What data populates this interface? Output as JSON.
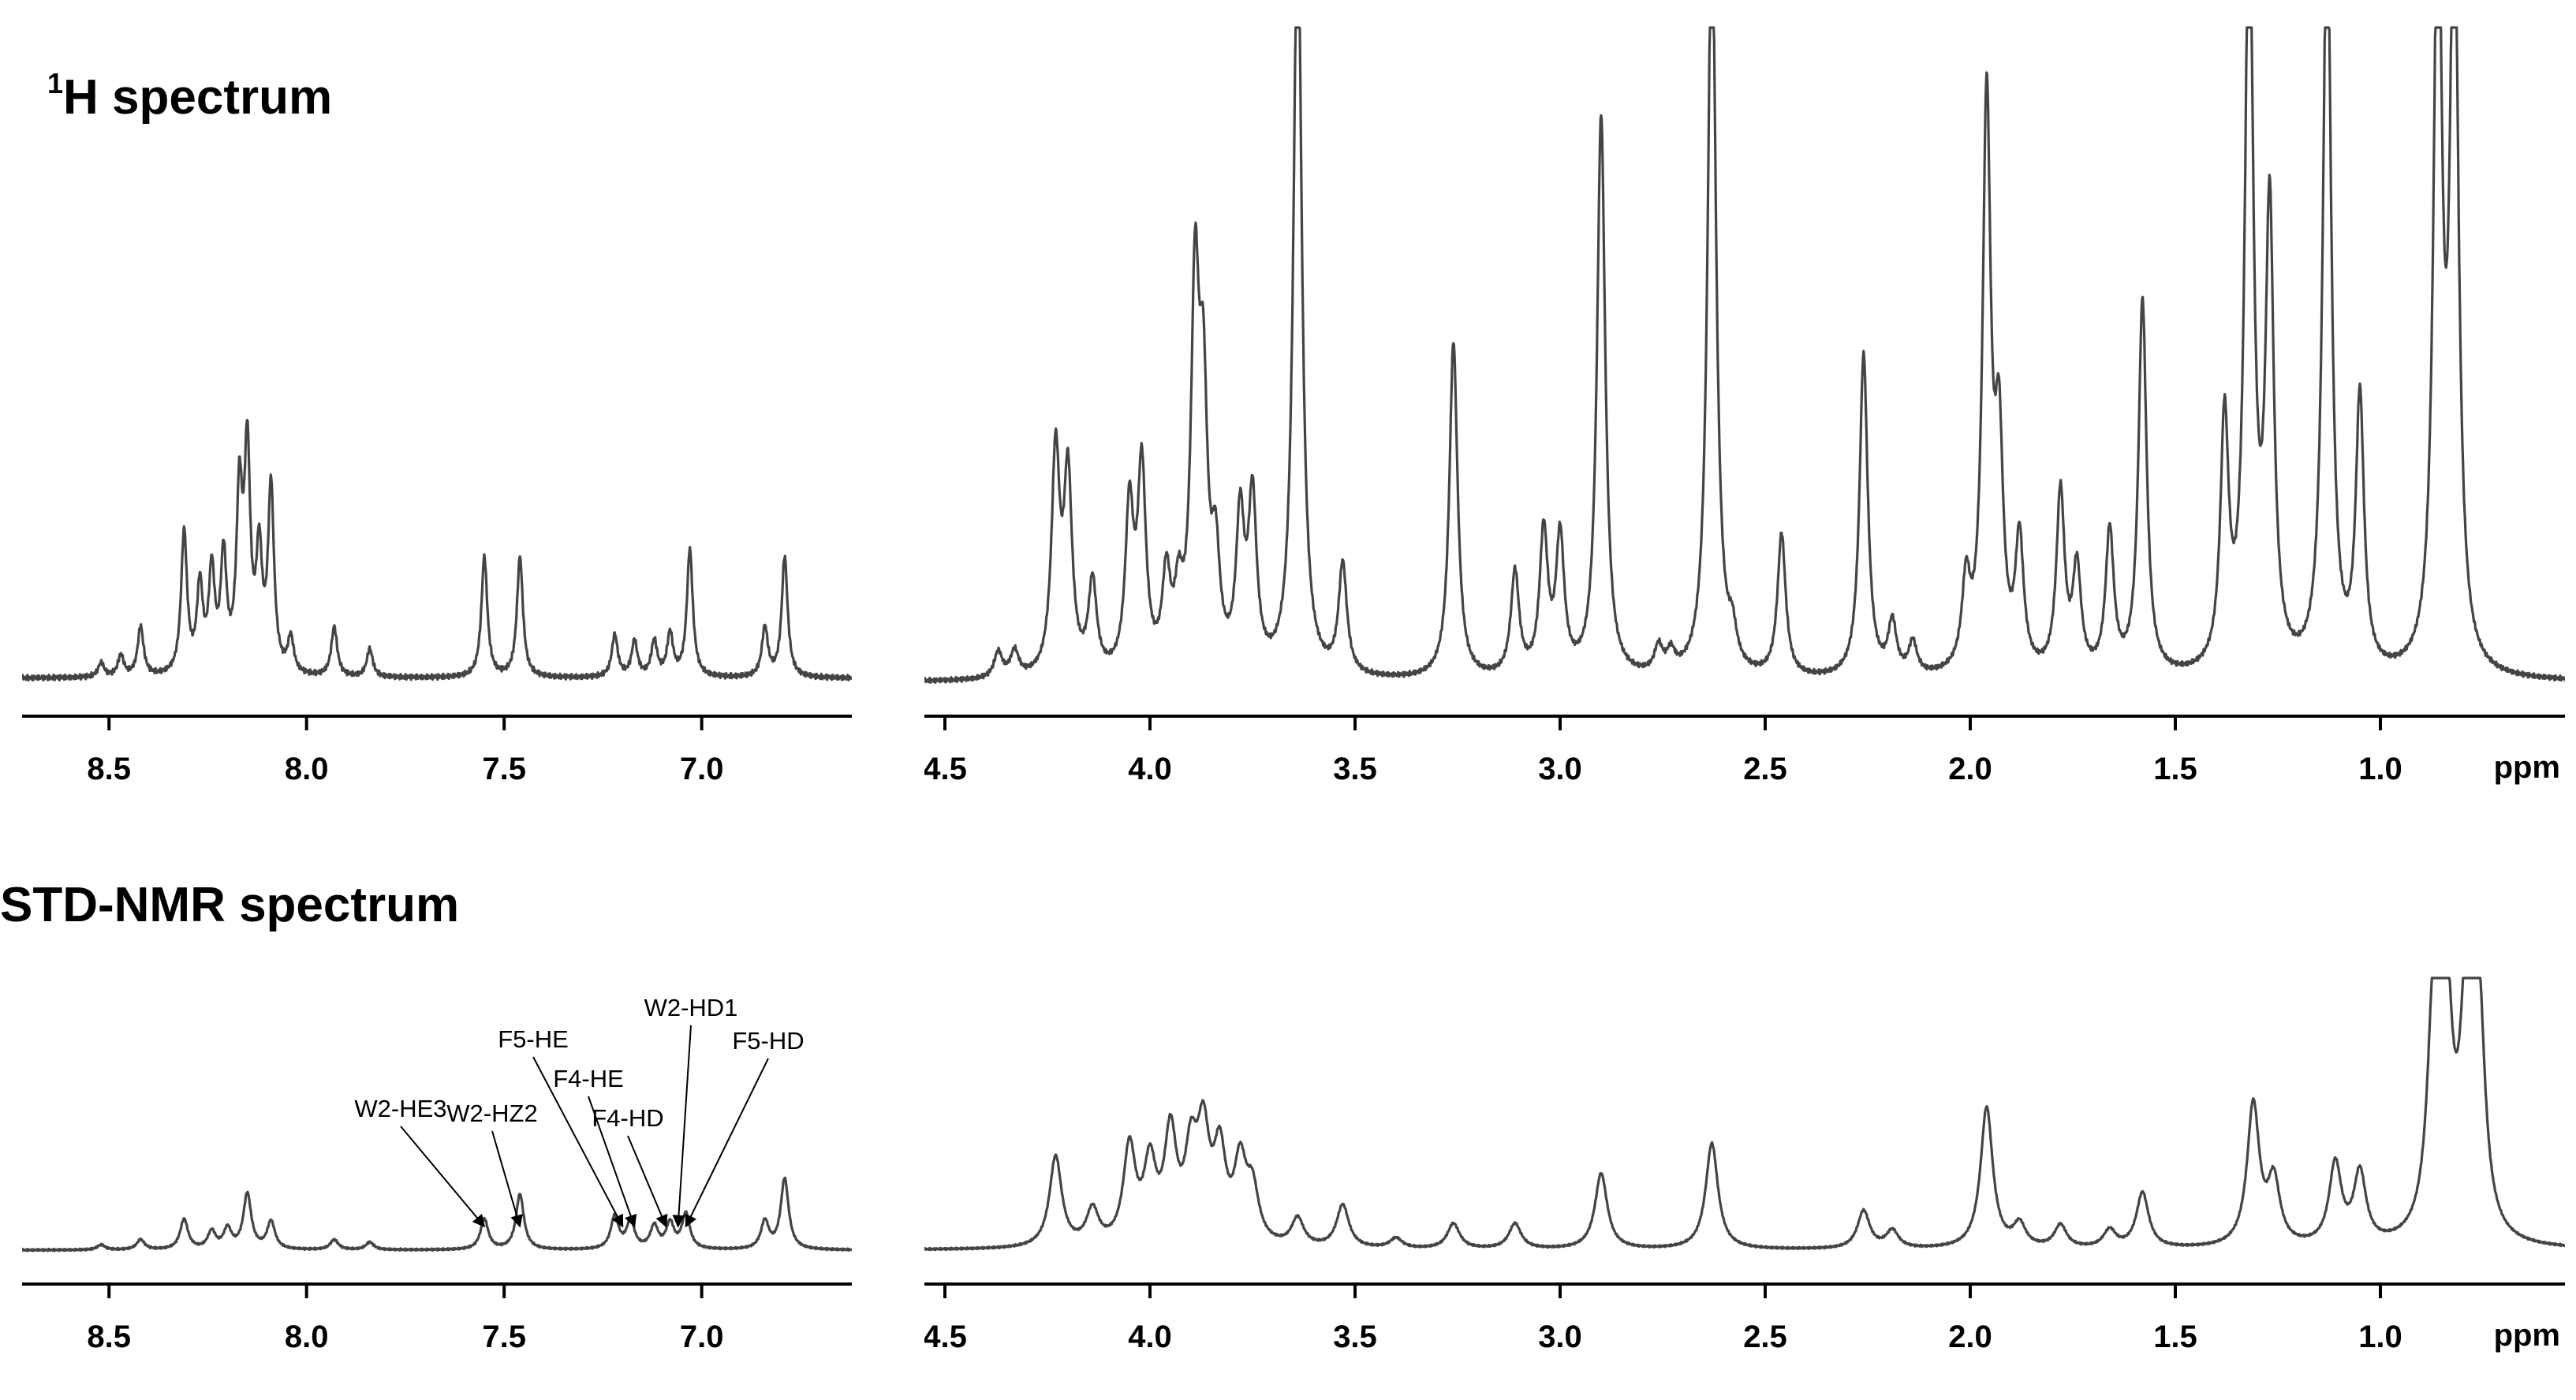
{
  "titles": {
    "h1": {
      "sup": "1",
      "text": "H spectrum"
    },
    "std": {
      "text": "STD-NMR spectrum"
    }
  },
  "axis_unit": "ppm",
  "colors": {
    "trace": "#444444",
    "axis": "#000000"
  },
  "chart_data": [
    {
      "type": "line",
      "panel": "1H spectrum, aromatic region",
      "xlabel": "",
      "xlim": [
        8.72,
        6.62
      ],
      "x_reversed": true,
      "x_ticks": [
        "8.5",
        "8.0",
        "7.5",
        "7.0"
      ],
      "peaks": [
        {
          "x": 8.52,
          "y": 0.02
        },
        {
          "x": 8.47,
          "y": 0.03
        },
        {
          "x": 8.42,
          "y": 0.07
        },
        {
          "x": 8.31,
          "y": 0.2
        },
        {
          "x": 8.27,
          "y": 0.12
        },
        {
          "x": 8.24,
          "y": 0.14
        },
        {
          "x": 8.21,
          "y": 0.16
        },
        {
          "x": 8.17,
          "y": 0.24
        },
        {
          "x": 8.15,
          "y": 0.3
        },
        {
          "x": 8.12,
          "y": 0.16
        },
        {
          "x": 8.09,
          "y": 0.26
        },
        {
          "x": 8.04,
          "y": 0.05
        },
        {
          "x": 7.93,
          "y": 0.07
        },
        {
          "x": 7.84,
          "y": 0.04
        },
        {
          "x": 7.55,
          "y": 0.17
        },
        {
          "x": 7.46,
          "y": 0.17
        },
        {
          "x": 7.22,
          "y": 0.06
        },
        {
          "x": 7.17,
          "y": 0.05
        },
        {
          "x": 7.12,
          "y": 0.05
        },
        {
          "x": 7.08,
          "y": 0.06
        },
        {
          "x": 7.03,
          "y": 0.18
        },
        {
          "x": 6.84,
          "y": 0.07
        },
        {
          "x": 6.79,
          "y": 0.17
        }
      ]
    },
    {
      "type": "line",
      "panel": "1H spectrum, aliphatic region",
      "xlabel": "ppm",
      "xlim": [
        4.55,
        0.55
      ],
      "x_reversed": true,
      "x_ticks": [
        "4.5",
        "4.0",
        "3.5",
        "3.0",
        "2.5",
        "2.0",
        "1.5",
        "1.0"
      ],
      "peaks": [
        {
          "x": 4.37,
          "y": 0.04
        },
        {
          "x": 4.33,
          "y": 0.04
        },
        {
          "x": 4.23,
          "y": 0.34
        },
        {
          "x": 4.2,
          "y": 0.3
        },
        {
          "x": 4.14,
          "y": 0.14
        },
        {
          "x": 4.05,
          "y": 0.25
        },
        {
          "x": 4.02,
          "y": 0.31
        },
        {
          "x": 3.96,
          "y": 0.14
        },
        {
          "x": 3.93,
          "y": 0.1
        },
        {
          "x": 3.89,
          "y": 0.57
        },
        {
          "x": 3.87,
          "y": 0.38
        },
        {
          "x": 3.84,
          "y": 0.16
        },
        {
          "x": 3.78,
          "y": 0.23
        },
        {
          "x": 3.75,
          "y": 0.26
        },
        {
          "x": 3.64,
          "y": 1.2
        },
        {
          "x": 3.53,
          "y": 0.17
        },
        {
          "x": 3.26,
          "y": 0.52
        },
        {
          "x": 3.11,
          "y": 0.16
        },
        {
          "x": 3.04,
          "y": 0.22
        },
        {
          "x": 3.0,
          "y": 0.21
        },
        {
          "x": 2.9,
          "y": 0.87
        },
        {
          "x": 2.76,
          "y": 0.04
        },
        {
          "x": 2.73,
          "y": 0.03
        },
        {
          "x": 2.63,
          "y": 1.2
        },
        {
          "x": 2.58,
          "y": 0.05
        },
        {
          "x": 2.46,
          "y": 0.22
        },
        {
          "x": 2.26,
          "y": 0.5
        },
        {
          "x": 2.19,
          "y": 0.08
        },
        {
          "x": 2.14,
          "y": 0.05
        },
        {
          "x": 2.01,
          "y": 0.13
        },
        {
          "x": 1.96,
          "y": 0.88
        },
        {
          "x": 1.93,
          "y": 0.33
        },
        {
          "x": 1.88,
          "y": 0.2
        },
        {
          "x": 1.78,
          "y": 0.28
        },
        {
          "x": 1.74,
          "y": 0.16
        },
        {
          "x": 1.66,
          "y": 0.22
        },
        {
          "x": 1.58,
          "y": 0.58
        },
        {
          "x": 1.38,
          "y": 0.38
        },
        {
          "x": 1.32,
          "y": 1.2
        },
        {
          "x": 1.27,
          "y": 0.7
        },
        {
          "x": 1.13,
          "y": 1.2
        },
        {
          "x": 1.05,
          "y": 0.42
        },
        {
          "x": 0.86,
          "y": 1.2
        },
        {
          "x": 0.82,
          "y": 1.2
        }
      ]
    },
    {
      "type": "line",
      "panel": "STD-NMR spectrum, aromatic region",
      "xlabel": "",
      "xlim": [
        8.72,
        6.62
      ],
      "x_reversed": true,
      "x_ticks": [
        "8.5",
        "8.0",
        "7.5",
        "7.0"
      ],
      "peaks": [
        {
          "x": 8.52,
          "y": 0.02
        },
        {
          "x": 8.42,
          "y": 0.04
        },
        {
          "x": 8.31,
          "y": 0.12
        },
        {
          "x": 8.24,
          "y": 0.07
        },
        {
          "x": 8.2,
          "y": 0.08
        },
        {
          "x": 8.15,
          "y": 0.22
        },
        {
          "x": 8.09,
          "y": 0.11
        },
        {
          "x": 7.93,
          "y": 0.04
        },
        {
          "x": 7.84,
          "y": 0.03
        },
        {
          "x": 7.55,
          "y": 0.12
        },
        {
          "x": 7.46,
          "y": 0.22
        },
        {
          "x": 7.22,
          "y": 0.13
        },
        {
          "x": 7.18,
          "y": 0.11
        },
        {
          "x": 7.12,
          "y": 0.09
        },
        {
          "x": 7.08,
          "y": 0.1
        },
        {
          "x": 7.04,
          "y": 0.14
        },
        {
          "x": 6.84,
          "y": 0.11
        },
        {
          "x": 6.79,
          "y": 0.28
        }
      ],
      "annotations": [
        {
          "text": "W2-HE3",
          "x": 7.55
        },
        {
          "text": "W2-HZ2",
          "x": 7.46
        },
        {
          "text": "F5-HE",
          "x": 7.2
        },
        {
          "text": "F4-HE",
          "x": 7.17
        },
        {
          "text": "F4-HD",
          "x": 7.09
        },
        {
          "text": "W2-HD1",
          "x": 7.06
        },
        {
          "text": "F5-HD",
          "x": 7.04
        }
      ]
    },
    {
      "type": "line",
      "panel": "STD-NMR spectrum, aliphatic region",
      "xlabel": "ppm",
      "xlim": [
        4.55,
        0.55
      ],
      "x_reversed": true,
      "x_ticks": [
        "4.5",
        "4.0",
        "3.5",
        "3.0",
        "2.5",
        "2.0",
        "1.5",
        "1.0"
      ],
      "peaks": [
        {
          "x": 4.23,
          "y": 0.36
        },
        {
          "x": 4.14,
          "y": 0.14
        },
        {
          "x": 4.05,
          "y": 0.38
        },
        {
          "x": 4.0,
          "y": 0.3
        },
        {
          "x": 3.95,
          "y": 0.42
        },
        {
          "x": 3.9,
          "y": 0.32
        },
        {
          "x": 3.87,
          "y": 0.4
        },
        {
          "x": 3.83,
          "y": 0.34
        },
        {
          "x": 3.78,
          "y": 0.3
        },
        {
          "x": 3.75,
          "y": 0.2
        },
        {
          "x": 3.64,
          "y": 0.11
        },
        {
          "x": 3.53,
          "y": 0.17
        },
        {
          "x": 3.4,
          "y": 0.04
        },
        {
          "x": 3.26,
          "y": 0.1
        },
        {
          "x": 3.11,
          "y": 0.1
        },
        {
          "x": 2.9,
          "y": 0.3
        },
        {
          "x": 2.63,
          "y": 0.42
        },
        {
          "x": 2.26,
          "y": 0.15
        },
        {
          "x": 2.19,
          "y": 0.07
        },
        {
          "x": 1.96,
          "y": 0.56
        },
        {
          "x": 1.88,
          "y": 0.09
        },
        {
          "x": 1.78,
          "y": 0.09
        },
        {
          "x": 1.66,
          "y": 0.07
        },
        {
          "x": 1.58,
          "y": 0.22
        },
        {
          "x": 1.31,
          "y": 0.56
        },
        {
          "x": 1.26,
          "y": 0.25
        },
        {
          "x": 1.11,
          "y": 0.32
        },
        {
          "x": 1.05,
          "y": 0.28
        },
        {
          "x": 0.87,
          "y": 0.88
        },
        {
          "x": 0.84,
          "y": 0.9
        },
        {
          "x": 0.79,
          "y": 0.89
        },
        {
          "x": 0.76,
          "y": 0.86
        }
      ]
    }
  ]
}
